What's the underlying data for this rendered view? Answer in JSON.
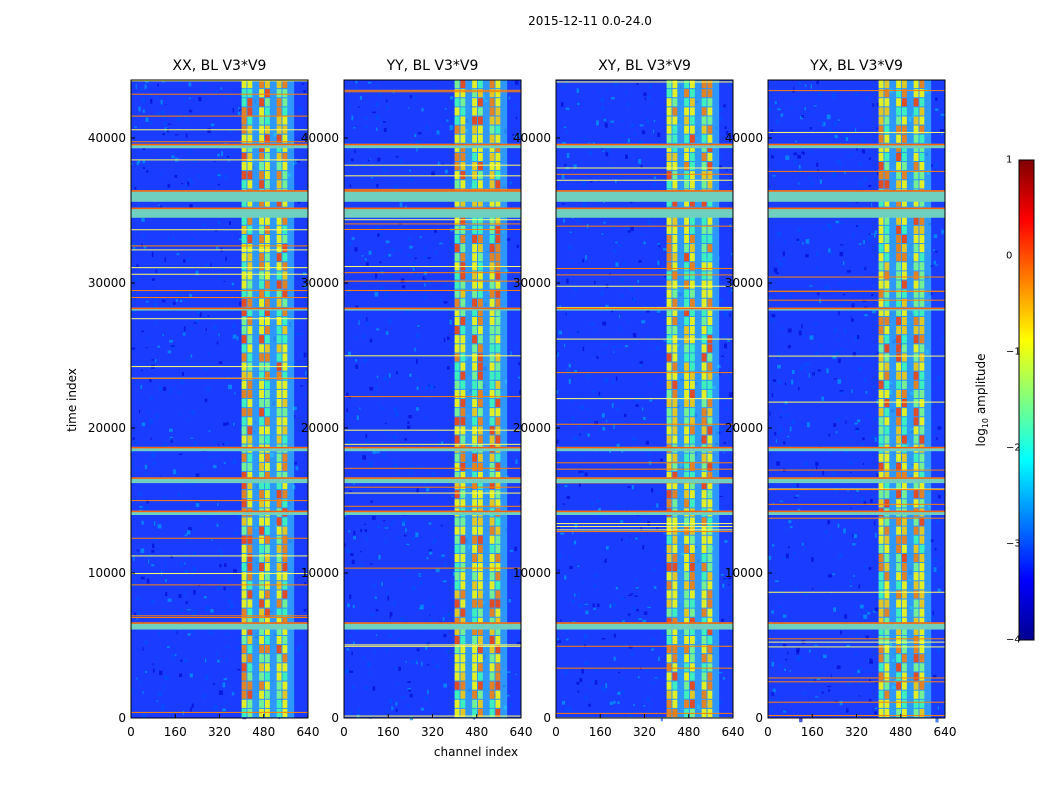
{
  "chart_data": {
    "type": "heatmap",
    "suptitle": "2015-12-11 0.0-24.0",
    "xlabel": "channel index",
    "ylabel": "time index",
    "xlim": [
      0,
      640
    ],
    "ylim": [
      0,
      44000
    ],
    "xticks": [
      0,
      160,
      320,
      480,
      640
    ],
    "xtick_labels": [
      "0",
      "160",
      "320",
      "480",
      "640"
    ],
    "yticks": [
      0,
      10000,
      20000,
      30000,
      40000
    ],
    "ytick_labels": [
      "0",
      "10000",
      "20000",
      "30000",
      "40000"
    ],
    "panels": [
      {
        "title": "XX, BL V3*V9",
        "band_intensity": 0.9
      },
      {
        "title": "YY, BL V3*V9",
        "band_intensity": 0.85
      },
      {
        "title": "XY, BL V3*V9",
        "band_intensity": 0.7
      },
      {
        "title": "YX, BL V3*V9",
        "band_intensity": 0.7
      }
    ],
    "colorbar": {
      "label": "log10 amplitude",
      "label_text": "log",
      "label_sub": "10",
      "label_rest": " amplitude",
      "range": [
        -4,
        1
      ],
      "ticks": [
        "1",
        "0",
        "−1",
        "−2",
        "−3",
        "−4"
      ],
      "colormap": "jet"
    },
    "rfi_channel_band": [
      400,
      590
    ],
    "flagged_time_bands": [
      [
        34500,
        35200
      ],
      [
        35600,
        36400
      ],
      [
        6100,
        6600
      ],
      [
        14000,
        14300
      ],
      [
        28100,
        28300
      ],
      [
        39300,
        39600
      ],
      [
        18400,
        18700
      ],
      [
        16200,
        16600
      ]
    ]
  }
}
